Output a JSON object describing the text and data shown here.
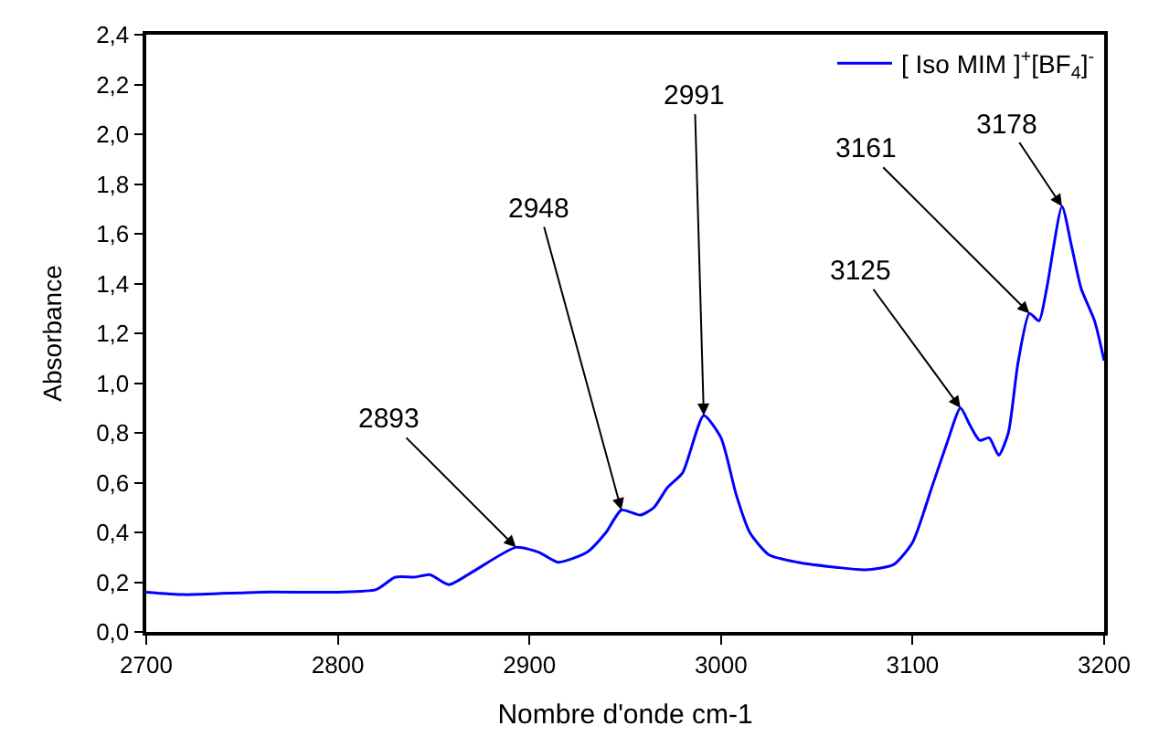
{
  "chart_data": {
    "type": "line",
    "xlabel": "Nombre d'onde cm-1",
    "ylabel": "Absorbance",
    "x": [
      2700,
      2720,
      2760,
      2800,
      2820,
      2830,
      2840,
      2848,
      2858,
      2870,
      2893,
      2905,
      2915,
      2930,
      2940,
      2948,
      2958,
      2965,
      2972,
      2980,
      2991,
      3000,
      3008,
      3015,
      3025,
      3040,
      3060,
      3075,
      3090,
      3100,
      3110,
      3118,
      3125,
      3130,
      3135,
      3140,
      3145,
      3150,
      3155,
      3161,
      3166,
      3170,
      3178,
      3183,
      3188,
      3195,
      3200
    ],
    "series": [
      {
        "name": "[ Iso MIM ]$^{+}$[BF$_{4}$]$^{-}$",
        "color": "#0000ff",
        "values": [
          0.16,
          0.15,
          0.16,
          0.16,
          0.17,
          0.22,
          0.22,
          0.23,
          0.19,
          0.24,
          0.34,
          0.32,
          0.28,
          0.32,
          0.4,
          0.49,
          0.47,
          0.5,
          0.58,
          0.64,
          0.87,
          0.78,
          0.55,
          0.4,
          0.31,
          0.28,
          0.26,
          0.25,
          0.27,
          0.36,
          0.58,
          0.76,
          0.9,
          0.83,
          0.77,
          0.78,
          0.71,
          0.8,
          1.08,
          1.28,
          1.25,
          1.38,
          1.71,
          1.55,
          1.38,
          1.25,
          1.09
        ]
      }
    ],
    "xlim": [
      2700,
      3200
    ],
    "xticks": [
      2700,
      2800,
      2900,
      3000,
      3100,
      3200
    ],
    "ylim": [
      0,
      2.4
    ],
    "yticks": [
      {
        "value": 0,
        "label": "0,0"
      },
      {
        "value": 0.2,
        "label": "0,2"
      },
      {
        "value": 0.4,
        "label": "0,4"
      },
      {
        "value": 0.6,
        "label": "0,6"
      },
      {
        "value": 0.8,
        "label": "0,8"
      },
      {
        "value": 1.0,
        "label": "1,0"
      },
      {
        "value": 1.2,
        "label": "1,2"
      },
      {
        "value": 1.4,
        "label": "1,4"
      },
      {
        "value": 1.6,
        "label": "1,6"
      },
      {
        "value": 1.8,
        "label": "1,8"
      },
      {
        "value": 2.0,
        "label": "2,0"
      },
      {
        "value": 2.2,
        "label": "2,2"
      },
      {
        "value": 2.4,
        "label": "2,4"
      }
    ],
    "annotations": [
      {
        "text": "2893",
        "x": 2893,
        "y": 0.34
      },
      {
        "text": "2948",
        "x": 2948,
        "y": 0.49
      },
      {
        "text": "2991",
        "x": 2991,
        "y": 0.87
      },
      {
        "text": "3125",
        "x": 3125,
        "y": 0.9
      },
      {
        "text": "3161",
        "x": 3161,
        "y": 1.28
      },
      {
        "text": "3178",
        "x": 3178,
        "y": 1.71
      }
    ],
    "legend": "top right",
    "marker": "none",
    "line_style": "solid"
  }
}
